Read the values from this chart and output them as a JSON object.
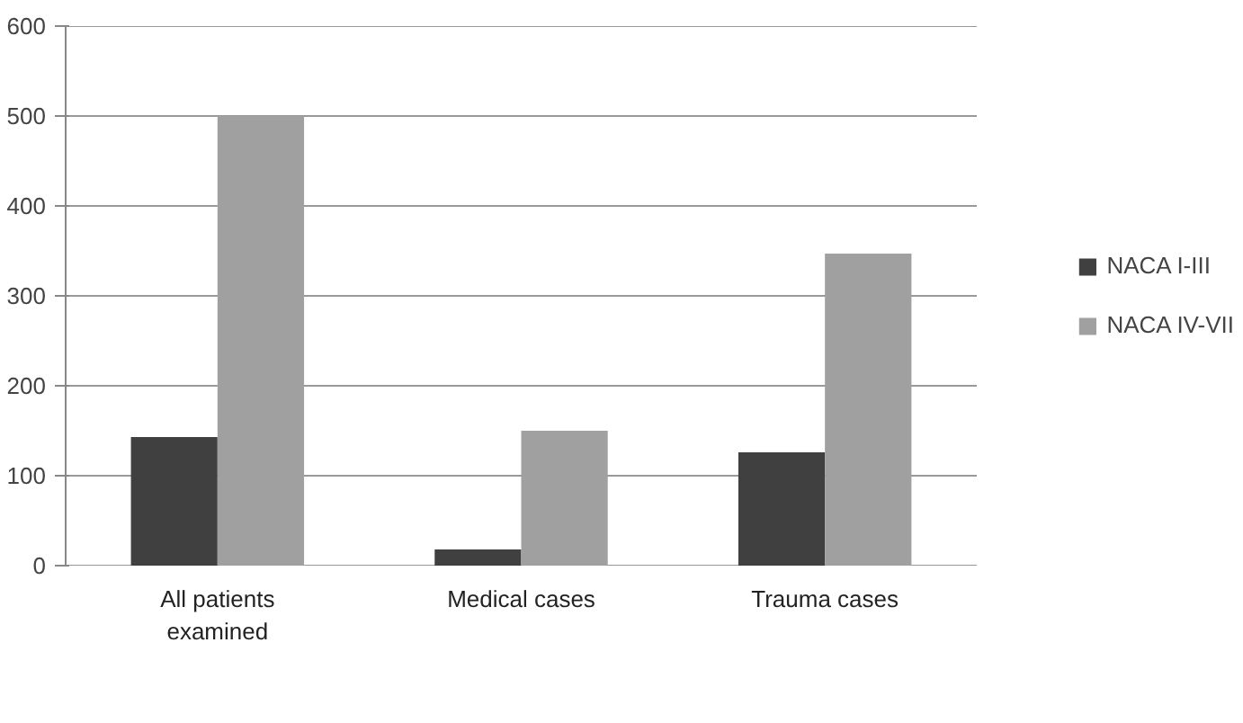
{
  "chart_data": {
    "type": "bar",
    "categories": [
      "All patients examined",
      "Medical cases",
      "Trauma cases"
    ],
    "series": [
      {
        "name": "NACA I-III",
        "color": "#404040",
        "values": [
          143,
          18,
          126
        ]
      },
      {
        "name": "NACA IV-VII",
        "color": "#a0a0a0",
        "values": [
          500,
          150,
          347
        ]
      }
    ],
    "ylim": [
      0,
      600
    ],
    "yticks": [
      0,
      100,
      200,
      300,
      400,
      500,
      600
    ],
    "grid": "y",
    "legend": "right"
  }
}
